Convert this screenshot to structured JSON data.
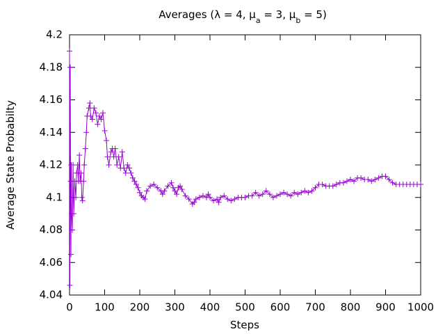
{
  "chart_data": {
    "type": "line",
    "title_parts": [
      "Averages (λ = 4, μ",
      "a",
      " = 3, μ",
      "b",
      " = 5)"
    ],
    "x_label": "Steps",
    "y_label": "Average State Probabilty",
    "color": "#9400d3",
    "marker": "plus",
    "grid": false,
    "xlim": [
      0,
      1000
    ],
    "xticks": [
      0,
      100,
      200,
      300,
      400,
      500,
      600,
      700,
      800,
      900,
      1000
    ],
    "ylim": [
      4.04,
      4.2
    ],
    "yticks": [
      4.04,
      4.06,
      4.08,
      4.1,
      4.12,
      4.14,
      4.16,
      4.18,
      4.2
    ],
    "x": [
      0,
      1,
      2,
      3,
      4,
      5,
      6,
      8,
      10,
      12,
      15,
      18,
      20,
      23,
      25,
      28,
      30,
      33,
      35,
      37,
      40,
      42,
      45,
      48,
      50,
      55,
      58,
      60,
      65,
      70,
      75,
      80,
      85,
      90,
      95,
      100,
      105,
      108,
      112,
      118,
      122,
      126,
      130,
      135,
      140,
      145,
      150,
      155,
      160,
      165,
      170,
      175,
      180,
      185,
      190,
      195,
      200,
      205,
      210,
      215,
      220,
      230,
      240,
      250,
      260,
      265,
      270,
      280,
      290,
      295,
      300,
      305,
      310,
      315,
      320,
      330,
      340,
      350,
      355,
      360,
      370,
      380,
      390,
      395,
      400,
      410,
      420,
      425,
      430,
      440,
      450,
      460,
      470,
      480,
      490,
      500,
      510,
      520,
      530,
      540,
      550,
      560,
      570,
      580,
      590,
      600,
      610,
      620,
      630,
      640,
      650,
      660,
      670,
      680,
      690,
      700,
      710,
      720,
      730,
      740,
      750,
      760,
      770,
      780,
      790,
      800,
      810,
      820,
      830,
      840,
      850,
      860,
      870,
      880,
      890,
      900,
      910,
      920,
      930,
      940,
      950,
      960,
      970,
      980,
      990,
      1000
    ],
    "values": [
      4.19,
      4.046,
      4.18,
      4.11,
      4.065,
      4.12,
      4.09,
      4.08,
      4.12,
      4.09,
      4.11,
      4.1,
      4.115,
      4.12,
      4.11,
      4.126,
      4.11,
      4.115,
      4.1,
      4.098,
      4.11,
      4.12,
      4.13,
      4.14,
      4.15,
      4.155,
      4.158,
      4.15,
      4.148,
      4.155,
      4.152,
      4.145,
      4.15,
      4.148,
      4.152,
      4.141,
      4.135,
      4.125,
      4.12,
      4.128,
      4.13,
      4.125,
      4.13,
      4.12,
      4.125,
      4.118,
      4.128,
      4.118,
      4.115,
      4.12,
      4.118,
      4.115,
      4.112,
      4.11,
      4.108,
      4.106,
      4.103,
      4.101,
      4.1,
      4.099,
      4.104,
      4.107,
      4.108,
      4.106,
      4.104,
      4.102,
      4.104,
      4.107,
      4.109,
      4.106,
      4.104,
      4.102,
      4.106,
      4.107,
      4.105,
      4.101,
      4.099,
      4.096,
      4.097,
      4.099,
      4.1,
      4.101,
      4.1,
      4.102,
      4.1,
      4.098,
      4.099,
      4.097,
      4.1,
      4.101,
      4.099,
      4.098,
      4.099,
      4.1,
      4.1,
      4.1,
      4.101,
      4.101,
      4.103,
      4.101,
      4.102,
      4.104,
      4.102,
      4.1,
      4.101,
      4.102,
      4.103,
      4.102,
      4.101,
      4.103,
      4.102,
      4.103,
      4.104,
      4.103,
      4.104,
      4.106,
      4.108,
      4.108,
      4.107,
      4.107,
      4.107,
      4.108,
      4.109,
      4.109,
      4.11,
      4.111,
      4.11,
      4.112,
      4.112,
      4.111,
      4.111,
      4.11,
      4.111,
      4.112,
      4.113,
      4.113,
      4.111,
      4.109,
      4.108,
      4.108,
      4.108,
      4.108,
      4.108,
      4.108,
      4.108,
      4.108
    ]
  }
}
